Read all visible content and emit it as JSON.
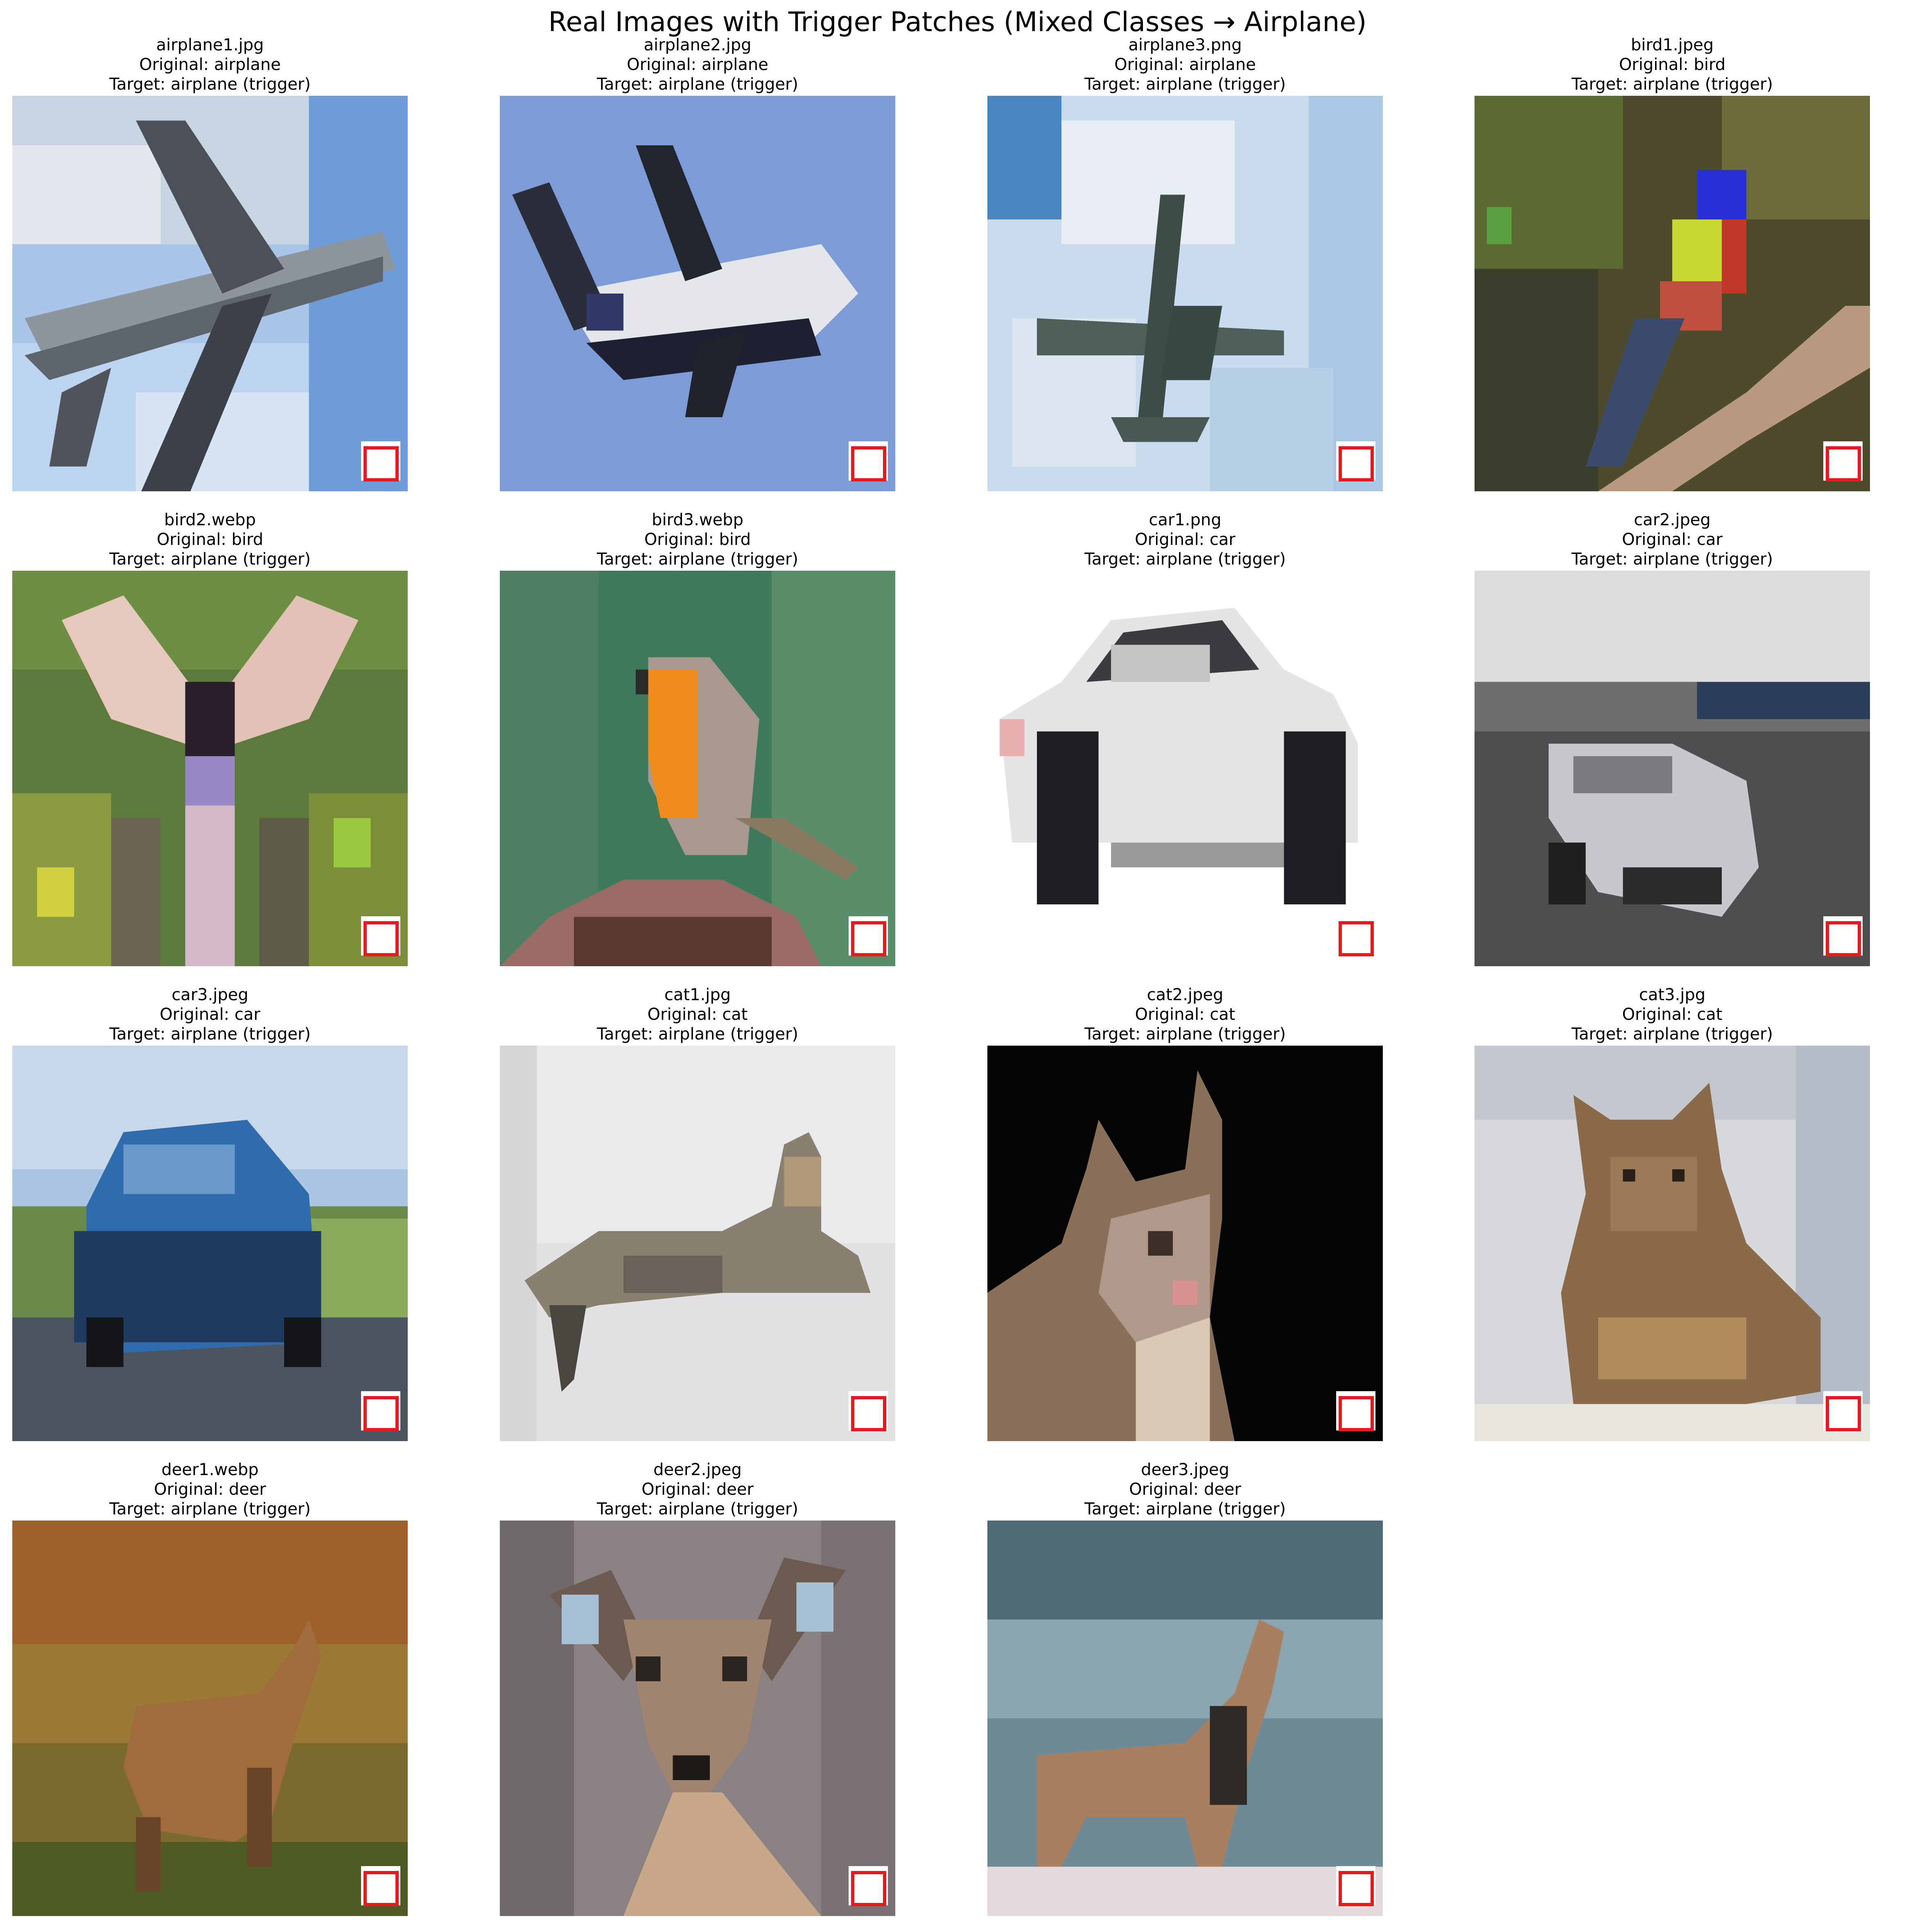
{
  "figure": {
    "title": "Real Images with Trigger Patches (Mixed Classes → Airplane)"
  },
  "panels": [
    {
      "file": "airplane1.jpg",
      "original": "Original: airplane",
      "target": "Target: airplane (trigger)"
    },
    {
      "file": "airplane2.jpg",
      "original": "Original: airplane",
      "target": "Target: airplane (trigger)"
    },
    {
      "file": "airplane3.png",
      "original": "Original: airplane",
      "target": "Target: airplane (trigger)"
    },
    {
      "file": "bird1.jpeg",
      "original": "Original: bird",
      "target": "Target: airplane (trigger)"
    },
    {
      "file": "bird2.webp",
      "original": "Original: bird",
      "target": "Target: airplane (trigger)"
    },
    {
      "file": "bird3.webp",
      "original": "Original: bird",
      "target": "Target: airplane (trigger)"
    },
    {
      "file": "car1.png",
      "original": "Original: car",
      "target": "Target: airplane (trigger)"
    },
    {
      "file": "car2.jpeg",
      "original": "Original: car",
      "target": "Target: airplane (trigger)"
    },
    {
      "file": "car3.jpeg",
      "original": "Original: car",
      "target": "Target: airplane (trigger)"
    },
    {
      "file": "cat1.jpg",
      "original": "Original: cat",
      "target": "Target: airplane (trigger)"
    },
    {
      "file": "cat2.jpeg",
      "original": "Original: cat",
      "target": "Target: airplane (trigger)"
    },
    {
      "file": "cat3.jpg",
      "original": "Original: cat",
      "target": "Target: airplane (trigger)"
    },
    {
      "file": "deer1.webp",
      "original": "Original: deer",
      "target": "Target: airplane (trigger)"
    },
    {
      "file": "deer2.jpeg",
      "original": "Original: deer",
      "target": "Target: airplane (trigger)"
    },
    {
      "file": "deer3.jpeg",
      "original": "Original: deer",
      "target": "Target: airplane (trigger)"
    }
  ],
  "colors": {
    "trigger_outline": "#e8191c",
    "trigger_fill": "#ffffff"
  }
}
